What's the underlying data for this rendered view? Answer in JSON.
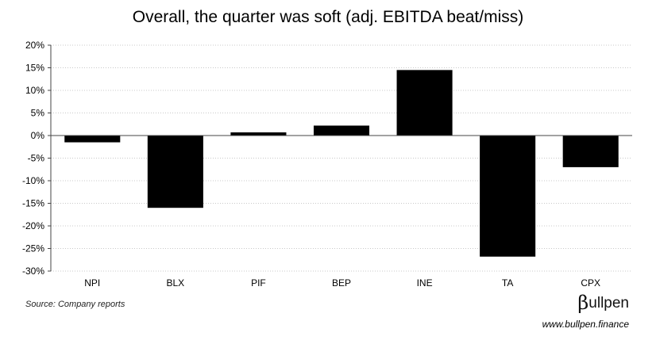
{
  "chart_data": {
    "type": "bar",
    "title": "Overall, the quarter was soft (adj. EBITDA beat/miss)",
    "categories": [
      "NPI",
      "BLX",
      "PIF",
      "BEP",
      "INE",
      "TA",
      "CPX"
    ],
    "values": [
      -1.5,
      -16.0,
      0.7,
      2.2,
      14.5,
      -26.8,
      -7.0
    ],
    "ylim": [
      -30,
      20
    ],
    "yticks": [
      20,
      15,
      10,
      5,
      0,
      -5,
      -10,
      -15,
      -20,
      -25,
      -30
    ],
    "ytick_suffix": "%",
    "grid": true,
    "bar_color": "#000000",
    "legend": "none"
  },
  "footer": {
    "source": "Source: Company reports",
    "brand_beta": "β",
    "brand_rest": "ullpen",
    "website": "www.bullpen.finance"
  }
}
